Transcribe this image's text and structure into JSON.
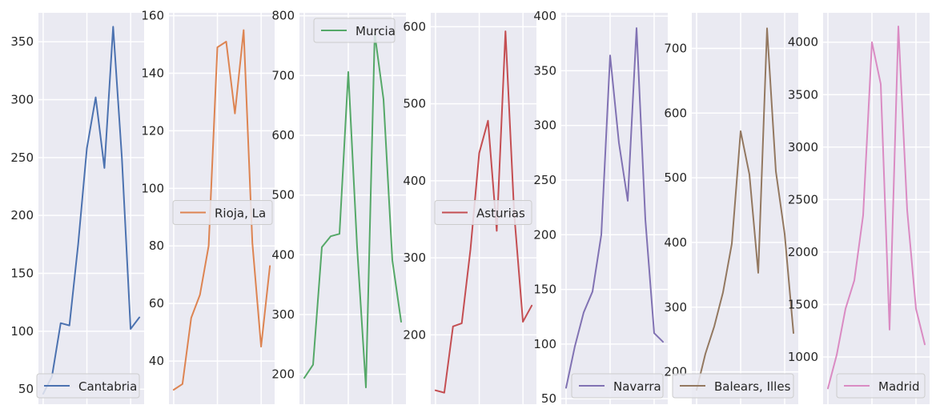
{
  "chart_data": [
    {
      "type": "line",
      "series": [
        {
          "name": "Cantabria",
          "values": [
            46,
            61,
            107,
            105,
            175,
            258,
            302,
            241,
            363,
            250,
            102,
            112
          ],
          "color": "#4c72b0"
        }
      ],
      "ylim": [
        37,
        375
      ],
      "yticks": [
        50,
        100,
        150,
        200,
        250,
        300,
        350
      ],
      "legend_position": "lower right",
      "grid": true
    },
    {
      "type": "line",
      "series": [
        {
          "name": "Rioja, La",
          "values": [
            30,
            32,
            55,
            63,
            80,
            149,
            151,
            126,
            155,
            81,
            45,
            73
          ],
          "color": "#dd8452"
        }
      ],
      "ylim": [
        25,
        161
      ],
      "yticks": [
        40,
        60,
        80,
        100,
        120,
        140,
        160
      ],
      "legend_position": "center left",
      "grid": true
    },
    {
      "type": "line",
      "series": [
        {
          "name": "Murcia",
          "values": [
            194,
            216,
            413,
            431,
            435,
            706,
            413,
            178,
            770,
            660,
            391,
            288
          ],
          "color": "#55a868"
        }
      ],
      "ylim": [
        150,
        805
      ],
      "yticks": [
        200,
        300,
        400,
        500,
        600,
        700,
        800
      ],
      "legend_position": "upper center",
      "grid": true
    },
    {
      "type": "line",
      "series": [
        {
          "name": "Asturias",
          "values": [
            128,
            125,
            211,
            215,
            311,
            436,
            478,
            335,
            594,
            357,
            217,
            238
          ],
          "color": "#c44e52"
        }
      ],
      "ylim": [
        110,
        618
      ],
      "yticks": [
        200,
        300,
        400,
        500,
        600
      ],
      "legend_position": "center left",
      "grid": true
    },
    {
      "type": "line",
      "series": [
        {
          "name": "Navarra",
          "values": [
            60,
            98,
            129,
            148,
            200,
            364,
            284,
            231,
            389,
            214,
            110,
            102
          ],
          "color": "#8172b3"
        }
      ],
      "ylim": [
        45,
        403
      ],
      "yticks": [
        50,
        100,
        150,
        200,
        250,
        300,
        350,
        400
      ],
      "legend_position": "lower right",
      "grid": true
    },
    {
      "type": "line",
      "series": [
        {
          "name": "Balears, Illes",
          "values": [
            172,
            228,
            270,
            323,
            398,
            572,
            505,
            353,
            731,
            510,
            413,
            260
          ],
          "color": "#937860"
        }
      ],
      "ylim": [
        150,
        755
      ],
      "yticks": [
        200,
        300,
        400,
        500,
        600,
        700
      ],
      "legend_position": "lower right",
      "grid": true
    },
    {
      "type": "line",
      "series": [
        {
          "name": "Madrid",
          "values": [
            700,
            1020,
            1460,
            1730,
            2350,
            4000,
            3600,
            1260,
            4150,
            2400,
            1460,
            1120
          ],
          "color": "#da8bc3"
        }
      ],
      "ylim": [
        550,
        4280
      ],
      "yticks": [
        1000,
        1500,
        2000,
        2500,
        3000,
        3500,
        4000
      ],
      "legend_position": "lower right",
      "grid": true
    }
  ],
  "style": {
    "axes_bg": "#eaeaf2",
    "grid_color": "#ffffff",
    "text_color": "#262626"
  }
}
